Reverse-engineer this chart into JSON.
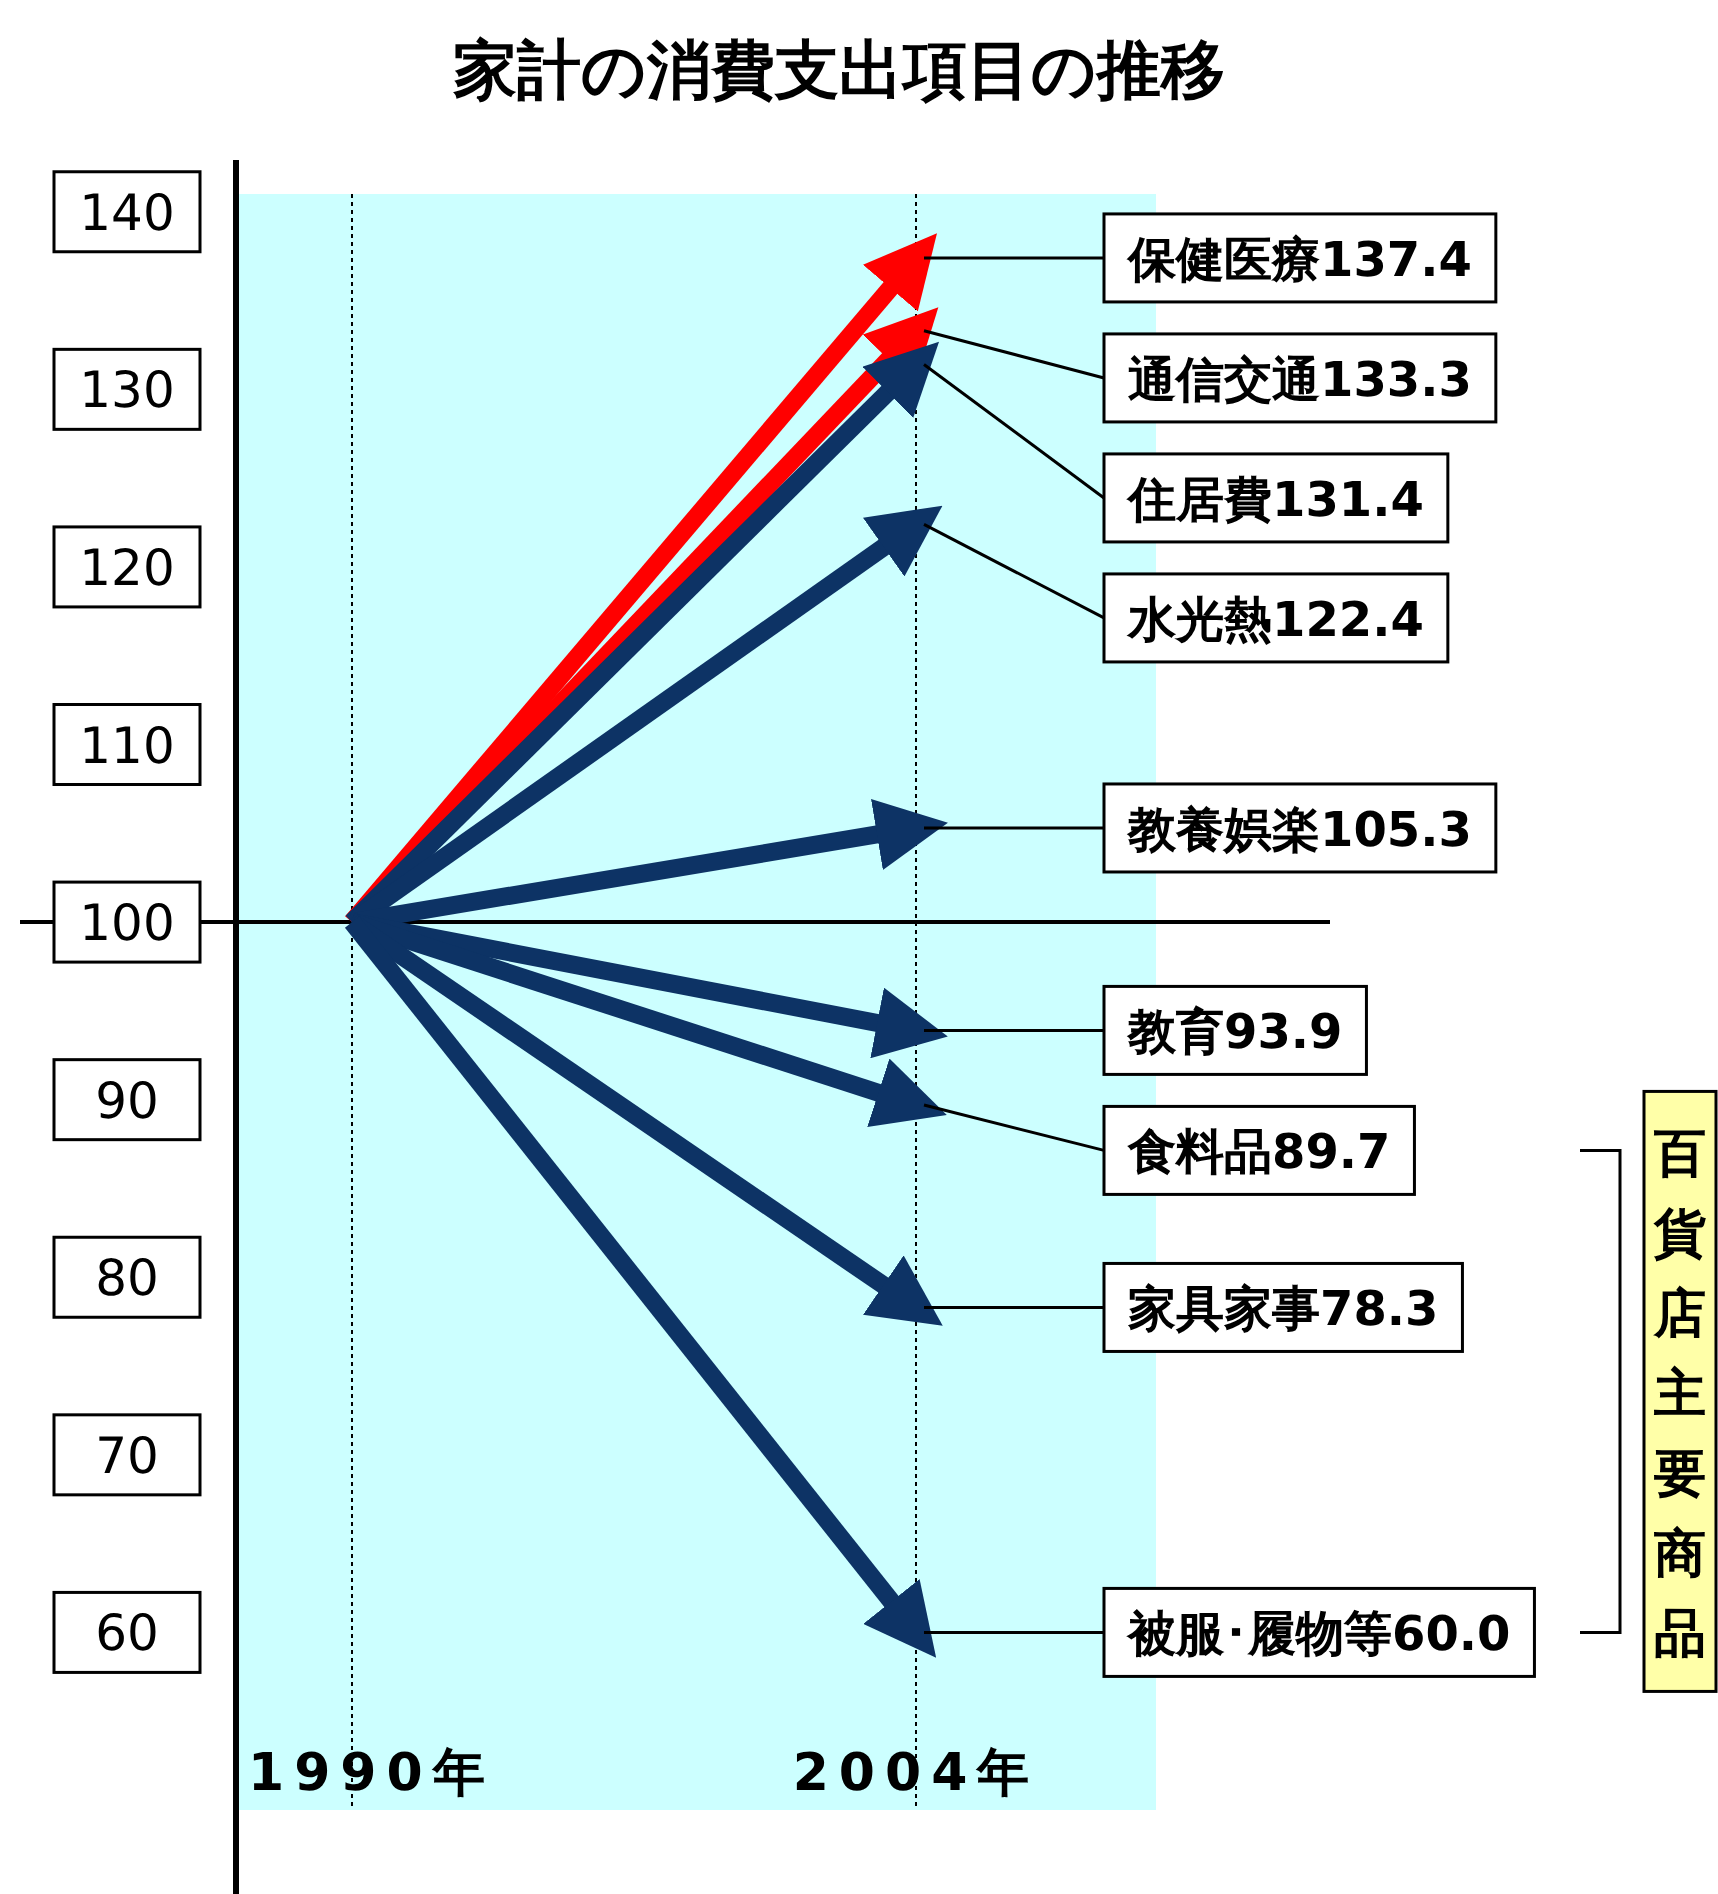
{
  "chart_data": {
    "type": "line",
    "title": "家計の消費支出項目の推移",
    "categories": [
      "1990年",
      "2004年"
    ],
    "ylim": [
      50,
      141
    ],
    "yticks": [
      60,
      70,
      80,
      90,
      100,
      110,
      120,
      130,
      140
    ],
    "ref_lines": [
      {
        "axis": "y",
        "value": 100
      },
      {
        "axis": "x",
        "value": "1990年",
        "line_style": "dotted"
      },
      {
        "axis": "x",
        "value": "2004年",
        "line_style": "dotted"
      }
    ],
    "annotations": [
      "百貨店主要商品"
    ],
    "series": [
      {
        "name": "保健医療",
        "color": "#ff0000",
        "values": [
          100,
          137.4
        ],
        "value_labels": [
          null,
          "137.4"
        ]
      },
      {
        "name": "通信交通",
        "color": "#ff0000",
        "values": [
          100,
          133.3
        ],
        "value_labels": [
          null,
          "133.3"
        ]
      },
      {
        "name": "住居費",
        "color": "#0d3365",
        "values": [
          100,
          131.4
        ],
        "value_labels": [
          null,
          "131.4"
        ]
      },
      {
        "name": "水光熱",
        "color": "#0d3365",
        "values": [
          100,
          122.4
        ],
        "value_labels": [
          null,
          "122.4"
        ]
      },
      {
        "name": "教養娯楽",
        "color": "#0d3365",
        "values": [
          100,
          105.3
        ],
        "value_labels": [
          null,
          "105.3"
        ]
      },
      {
        "name": "教育",
        "color": "#0d3365",
        "values": [
          100,
          93.9
        ],
        "value_labels": [
          null,
          "93.9"
        ]
      },
      {
        "name": "食料品",
        "color": "#0d3365",
        "values": [
          100,
          89.7
        ],
        "value_labels": [
          null,
          "89.7"
        ]
      },
      {
        "name": "家具家事",
        "color": "#0d3365",
        "values": [
          100,
          78.3
        ],
        "value_labels": [
          null,
          "78.3"
        ]
      },
      {
        "name": "被服･履物等",
        "color": "#0d3365",
        "values": [
          100,
          60.0
        ],
        "value_labels": [
          null,
          "60.0"
        ]
      }
    ]
  }
}
